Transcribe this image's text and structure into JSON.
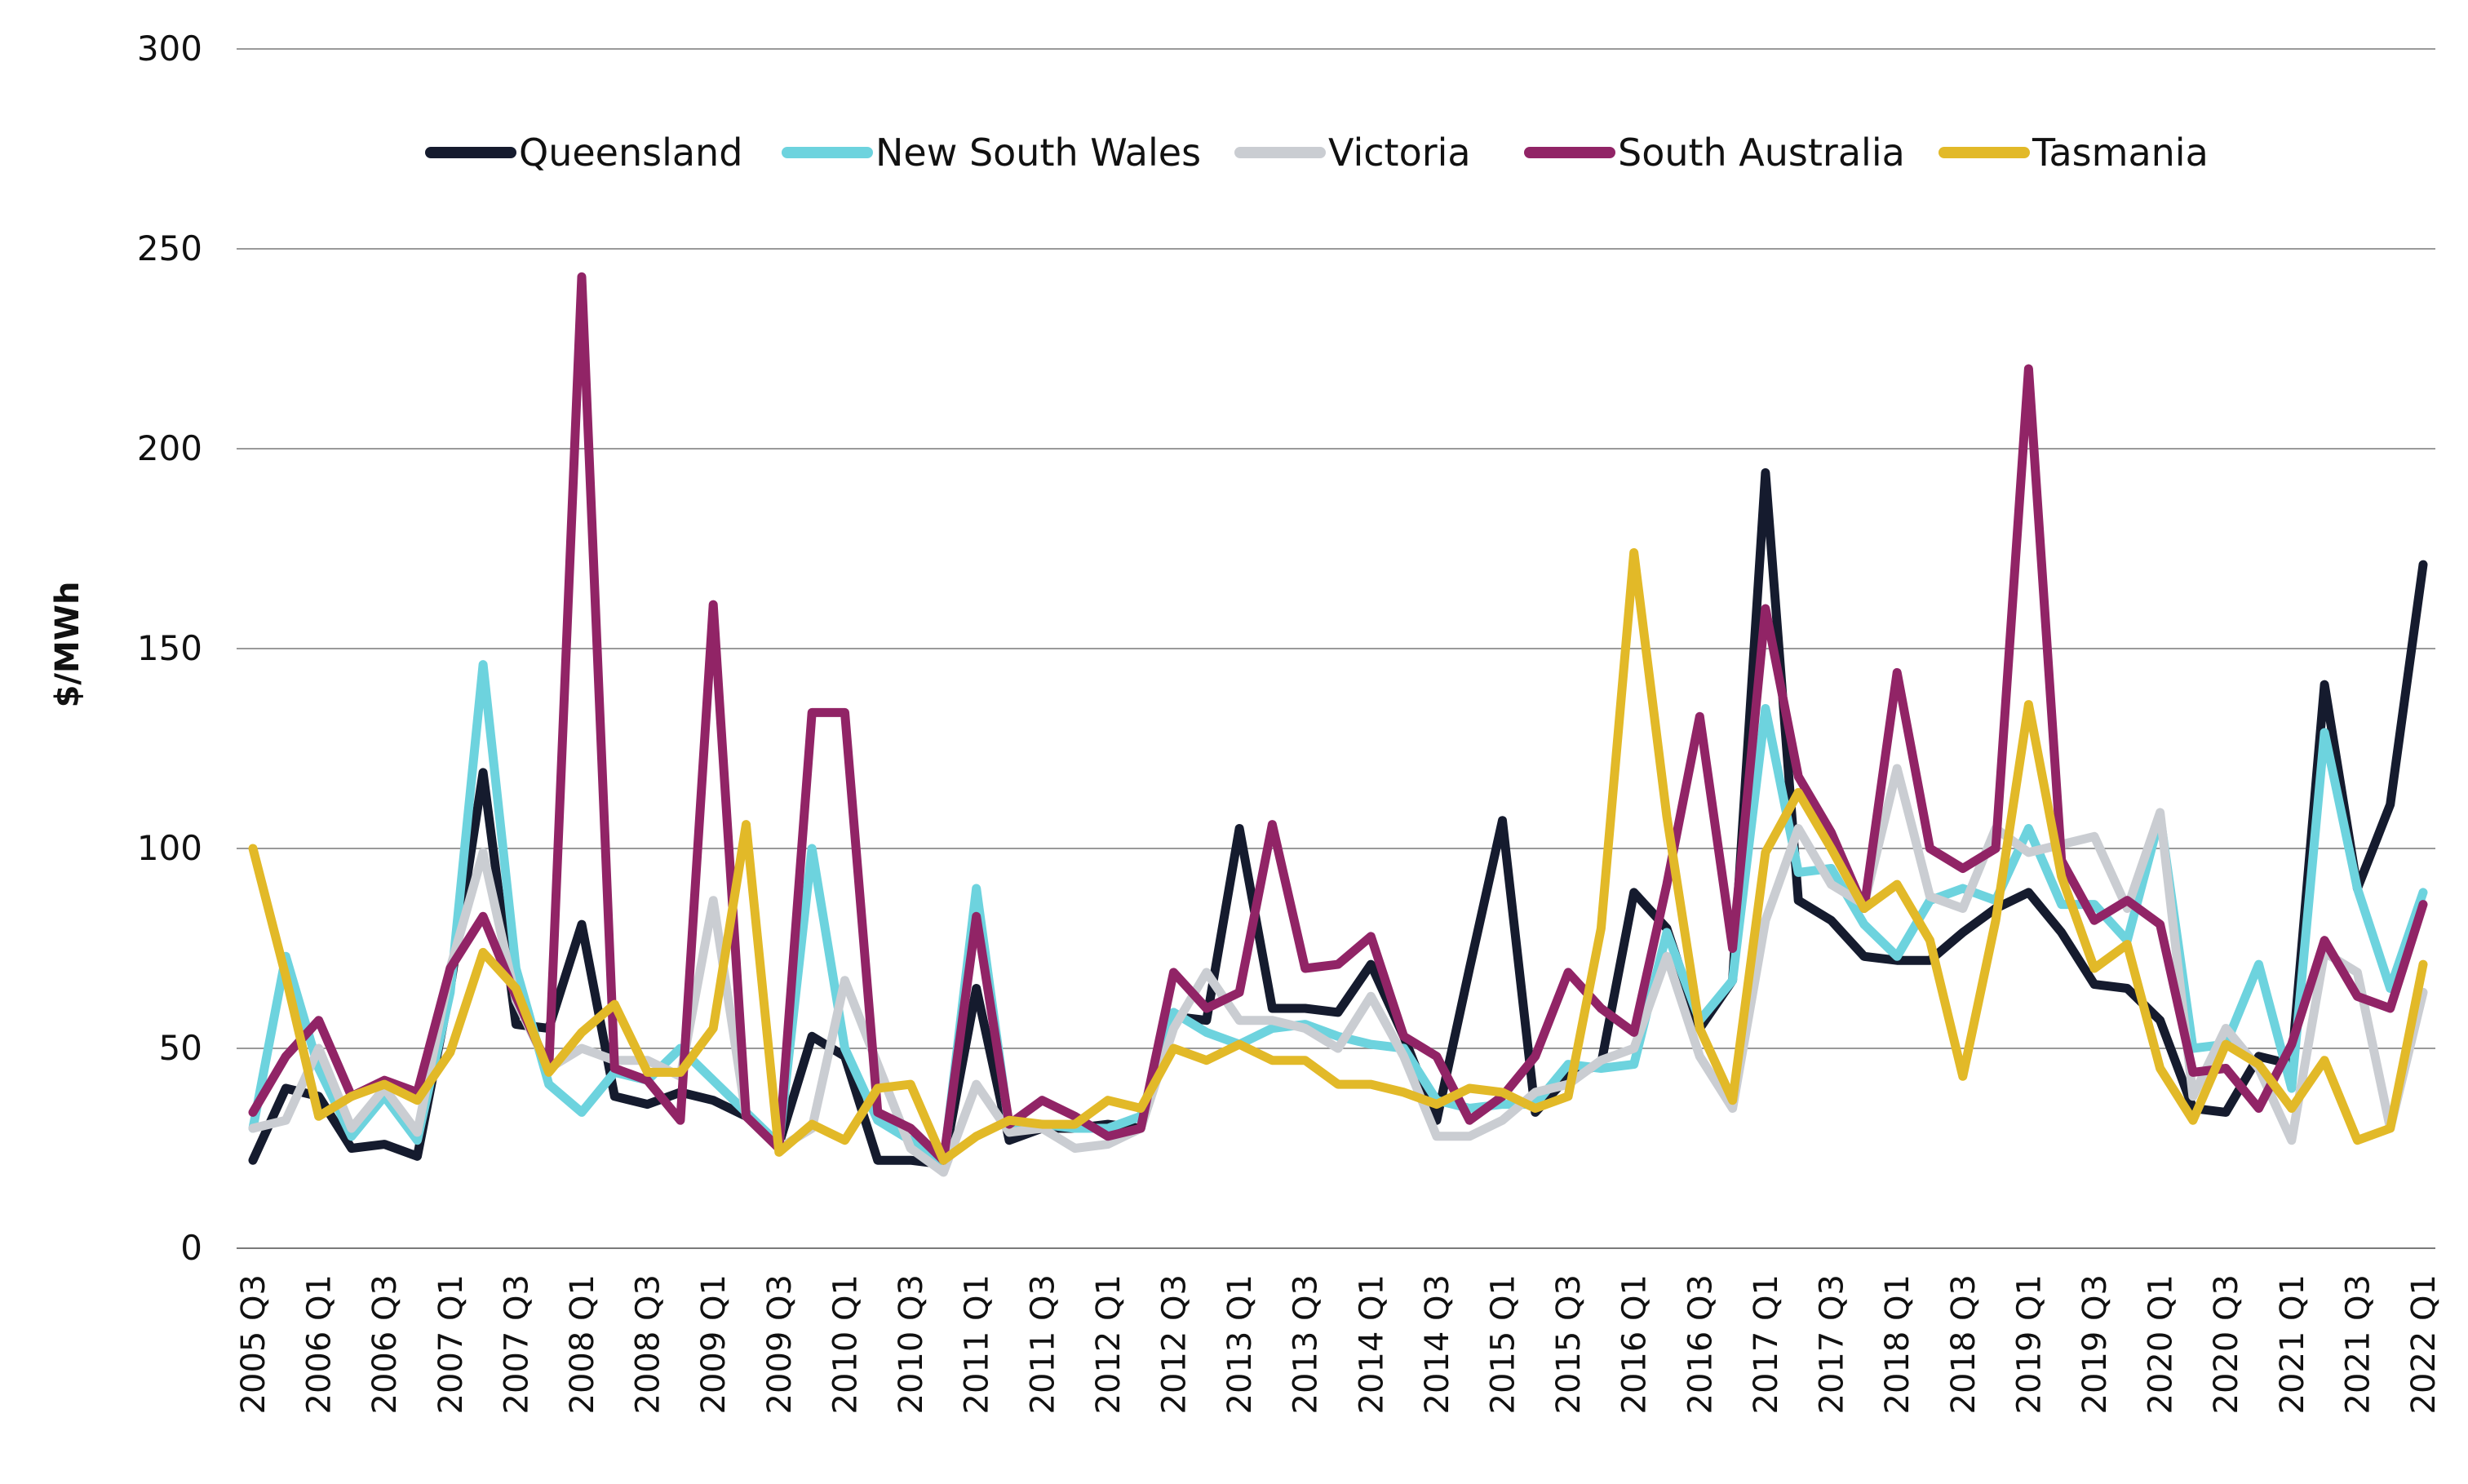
{
  "chart_data": {
    "type": "line",
    "title": "",
    "xlabel": "",
    "ylabel": "$/MWh",
    "ylim": [
      0,
      300
    ],
    "yticks": [
      0,
      50,
      100,
      150,
      200,
      250,
      300
    ],
    "grid": true,
    "legend_position": "top-center",
    "x": [
      "2005 Q3",
      "2005 Q4",
      "2006 Q1",
      "2006 Q2",
      "2006 Q3",
      "2006 Q4",
      "2007 Q1",
      "2007 Q2",
      "2007 Q3",
      "2007 Q4",
      "2008 Q1",
      "2008 Q2",
      "2008 Q3",
      "2008 Q4",
      "2009 Q1",
      "2009 Q2",
      "2009 Q3",
      "2009 Q4",
      "2010 Q1",
      "2010 Q2",
      "2010 Q3",
      "2010 Q4",
      "2011 Q1",
      "2011 Q2",
      "2011 Q3",
      "2011 Q4",
      "2012 Q1",
      "2012 Q2",
      "2012 Q3",
      "2012 Q4",
      "2013 Q1",
      "2013 Q2",
      "2013 Q3",
      "2013 Q4",
      "2014 Q1",
      "2014 Q2",
      "2014 Q3",
      "2014 Q4",
      "2015 Q1",
      "2015 Q2",
      "2015 Q3",
      "2015 Q4",
      "2016 Q1",
      "2016 Q2",
      "2016 Q3",
      "2016 Q4",
      "2017 Q1",
      "2017 Q2",
      "2017 Q3",
      "2017 Q4",
      "2018 Q1",
      "2018 Q2",
      "2018 Q3",
      "2018 Q4",
      "2019 Q1",
      "2019 Q2",
      "2019 Q3",
      "2019 Q4",
      "2020 Q1",
      "2020 Q2",
      "2020 Q3",
      "2020 Q4",
      "2021 Q1",
      "2021 Q2",
      "2021 Q3",
      "2021 Q4",
      "2022 Q1"
    ],
    "tick_labels": [
      "2005 Q3",
      "2006 Q1",
      "2006 Q3",
      "2007 Q1",
      "2007 Q3",
      "2008 Q1",
      "2008 Q3",
      "2009 Q1",
      "2009 Q3",
      "2010 Q1",
      "2010 Q3",
      "2011 Q1",
      "2011 Q3",
      "2012 Q1",
      "2012 Q3",
      "2013 Q1",
      "2013 Q3",
      "2014 Q1",
      "2014 Q3",
      "2015 Q1",
      "2015 Q3",
      "2016 Q1",
      "2016 Q3",
      "2017 Q1",
      "2017 Q3",
      "2018 Q1",
      "2018 Q3",
      "2019 Q1",
      "2019 Q3",
      "2020 Q1",
      "2020 Q3",
      "2021 Q1",
      "2021 Q3",
      "2022 Q1"
    ],
    "series": [
      {
        "name": "Queensland",
        "color": "#151b2e",
        "values": [
          22,
          40,
          38,
          25,
          26,
          23,
          65,
          119,
          56,
          55,
          81,
          38,
          36,
          39,
          37,
          33,
          26,
          53,
          48,
          22,
          22,
          21,
          65,
          27,
          30,
          30,
          31,
          30,
          58,
          57,
          105,
          60,
          60,
          59,
          71,
          53,
          32,
          70,
          107,
          34,
          43,
          46,
          89,
          80,
          55,
          67,
          194,
          87,
          82,
          73,
          72,
          72,
          79,
          85,
          89,
          79,
          66,
          65,
          57,
          35,
          34,
          48,
          46,
          141,
          90,
          111,
          171
        ]
      },
      {
        "name": "New South Wales",
        "color": "#6dd3de",
        "values": [
          30,
          73,
          45,
          28,
          38,
          27,
          64,
          146,
          70,
          41,
          34,
          44,
          42,
          50,
          42,
          34,
          26,
          100,
          50,
          32,
          27,
          21,
          90,
          30,
          31,
          30,
          30,
          33,
          59,
          54,
          51,
          55,
          56,
          53,
          51,
          50,
          37,
          35,
          36,
          36,
          46,
          45,
          46,
          79,
          57,
          67,
          135,
          94,
          95,
          81,
          73,
          87,
          90,
          87,
          105,
          86,
          86,
          77,
          108,
          50,
          51,
          71,
          40,
          129,
          90,
          65,
          89
        ]
      },
      {
        "name": "Victoria",
        "color": "#cacdd2",
        "values": [
          30,
          32,
          50,
          30,
          40,
          29,
          70,
          99,
          62,
          45,
          50,
          47,
          47,
          43,
          87,
          33,
          25,
          30,
          67,
          46,
          25,
          19,
          41,
          29,
          30,
          25,
          26,
          30,
          55,
          69,
          57,
          57,
          55,
          50,
          63,
          48,
          28,
          28,
          32,
          39,
          41,
          47,
          50,
          73,
          48,
          35,
          82,
          105,
          91,
          86,
          120,
          88,
          85,
          105,
          99,
          101,
          103,
          85,
          109,
          38,
          55,
          45,
          27,
          74,
          69,
          30,
          64
        ]
      },
      {
        "name": "South Australia",
        "color": "#912466",
        "values": [
          34,
          48,
          57,
          38,
          42,
          39,
          70,
          83,
          63,
          45,
          243,
          45,
          42,
          32,
          161,
          33,
          25,
          134,
          134,
          34,
          30,
          22,
          83,
          31,
          37,
          33,
          28,
          30,
          69,
          60,
          64,
          106,
          70,
          71,
          78,
          53,
          48,
          32,
          38,
          48,
          69,
          60,
          54,
          91,
          133,
          75,
          160,
          118,
          104,
          85,
          144,
          100,
          95,
          100,
          220,
          97,
          82,
          87,
          81,
          44,
          45,
          35,
          51,
          77,
          63,
          60,
          86
        ]
      },
      {
        "name": "Tasmania",
        "color": "#e2b928",
        "values": [
          100,
          68,
          33,
          38,
          41,
          37,
          49,
          74,
          65,
          44,
          54,
          61,
          44,
          44,
          55,
          106,
          24,
          31,
          27,
          40,
          41,
          22,
          28,
          32,
          31,
          31,
          37,
          35,
          50,
          47,
          51,
          47,
          47,
          41,
          41,
          39,
          36,
          40,
          39,
          35,
          38,
          80,
          174,
          108,
          55,
          37,
          99,
          114,
          100,
          85,
          91,
          77,
          43,
          82,
          136,
          93,
          70,
          76,
          45,
          32,
          51,
          46,
          35,
          47,
          27,
          30,
          71
        ]
      }
    ]
  }
}
